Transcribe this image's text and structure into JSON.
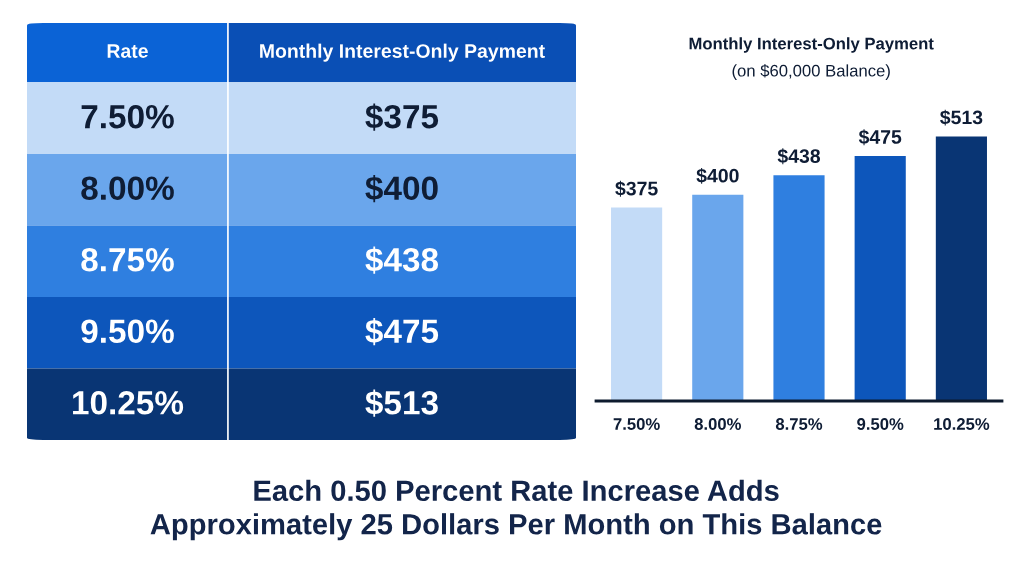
{
  "chart_data": {
    "type": "bar",
    "title": "Monthly Interest-Only Payment",
    "subtitle": "(on $60,000 Balance)",
    "categories": [
      "7.50%",
      "8.00%",
      "8.75%",
      "9.50%",
      "10.25%"
    ],
    "values": [
      375,
      400,
      438,
      475,
      513
    ],
    "value_labels": [
      "$375",
      "$400",
      "$438",
      "$475",
      "$513"
    ],
    "colors": [
      "#c3dbf7",
      "#6aa6ec",
      "#2f7fe0",
      "#0d56bb",
      "#093574"
    ],
    "tick_labels": "x",
    "annotations": [
      "Rate",
      "Monthly Interest-Only Payment",
      "Each 0.50 Percent Rate Increase Adds\nApproximately 25 Dollars Per Month on This Balance"
    ]
  }
}
